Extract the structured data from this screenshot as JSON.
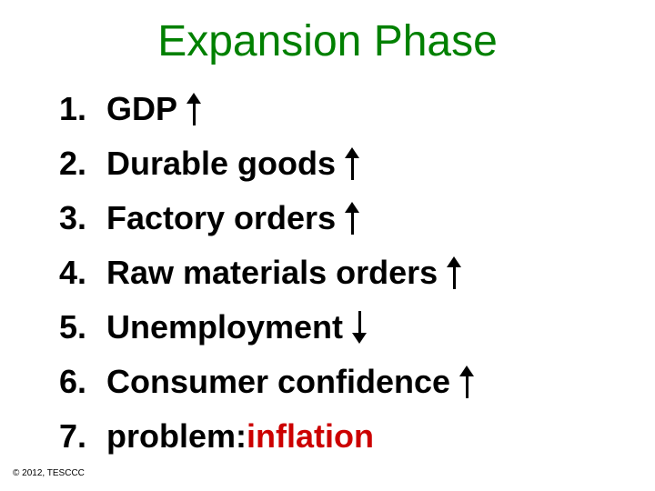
{
  "title": {
    "text": "Expansion Phase",
    "color": "#008000",
    "fontsize": 48
  },
  "list": {
    "fontsize": 36,
    "text_color": "#000000",
    "items": [
      {
        "num": "1.",
        "label": "GDP",
        "arrow": "up"
      },
      {
        "num": "2.",
        "label": "Durable goods",
        "arrow": "up"
      },
      {
        "num": "3.",
        "label": "Factory orders",
        "arrow": "up"
      },
      {
        "num": "4.",
        "label": "Raw materials orders",
        "arrow": "up"
      },
      {
        "num": "5.",
        "label": "Unemployment",
        "arrow": "down"
      },
      {
        "num": "6.",
        "label": "Consumer confidence",
        "arrow": "up"
      },
      {
        "num": "7.",
        "label": "problem: ",
        "highlight": "inflation",
        "highlight_color": "#cc0000",
        "arrow": "none"
      }
    ]
  },
  "arrow_style": {
    "shaft_width": 3,
    "shaft_height": 24,
    "head_width": 16,
    "head_height": 12,
    "color": "#000000"
  },
  "copyright": {
    "text": "© 2012, TESCCC",
    "fontsize": 10,
    "color": "#000000"
  }
}
